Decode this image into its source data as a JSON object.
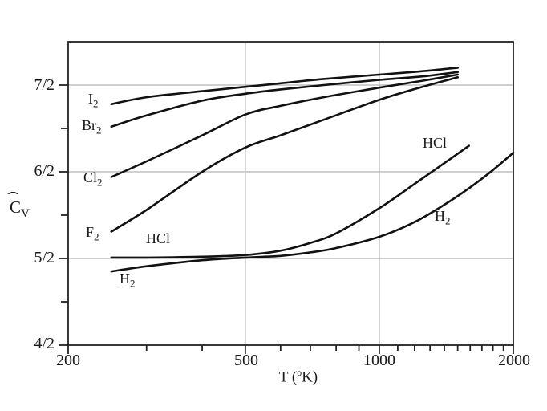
{
  "figure": {
    "y_axis_title": {
      "letter": "C",
      "hat": "ˆ",
      "sub": "V"
    },
    "x_axis_title": {
      "prefix": "T (",
      "sup": "o",
      "suffix": "K)"
    },
    "y_tick_labels": [
      "7/2",
      "6/2",
      "5/2",
      "4/2"
    ],
    "x_tick_labels": [
      "200",
      "500",
      "1000",
      "2000"
    ]
  },
  "curve_labels": {
    "i2": {
      "main": "I",
      "sub": "2"
    },
    "br2": {
      "main": "Br",
      "sub": "2"
    },
    "cl2": {
      "main": "Cl",
      "sub": "2"
    },
    "f2": {
      "main": "F",
      "sub": "2"
    },
    "hcl_left": {
      "main": "HCl",
      "sub": ""
    },
    "h2_left": {
      "main": "H",
      "sub": "2"
    },
    "hcl_right": {
      "main": "HCl",
      "sub": ""
    },
    "h2_right": {
      "main": "H",
      "sub": "2"
    }
  },
  "chart_data": {
    "type": "line",
    "title": "",
    "xlabel": "T (°K)",
    "ylabel": "Ĉv",
    "x_axis": {
      "scale": "log",
      "range": [
        200,
        2000
      ],
      "major_ticks": [
        200,
        500,
        1000,
        2000
      ],
      "minor_ticks": [
        300,
        400,
        600,
        700,
        800,
        900,
        1100,
        1200,
        1300,
        1400,
        1500,
        1600,
        1700,
        1800,
        1900
      ],
      "gridlines": [
        500,
        1000
      ]
    },
    "y_axis": {
      "range": [
        2.0,
        3.75
      ],
      "major_ticks": [
        2.0,
        2.5,
        3.0,
        3.5
      ],
      "major_tick_labels": [
        "4/2",
        "5/2",
        "6/2",
        "7/2"
      ],
      "minor_ticks": [
        2.25,
        2.75,
        3.25
      ],
      "gridlines": [
        2.5,
        3.0,
        3.5
      ]
    },
    "grid": true,
    "legend": "inline-labels",
    "series": [
      {
        "name": "I2",
        "points": [
          [
            250,
            3.39
          ],
          [
            300,
            3.43
          ],
          [
            400,
            3.465
          ],
          [
            500,
            3.49
          ],
          [
            600,
            3.51
          ],
          [
            750,
            3.535
          ],
          [
            1000,
            3.56
          ],
          [
            1250,
            3.58
          ],
          [
            1500,
            3.6
          ]
        ]
      },
      {
        "name": "Br2",
        "points": [
          [
            250,
            3.26
          ],
          [
            300,
            3.325
          ],
          [
            400,
            3.41
          ],
          [
            500,
            3.45
          ],
          [
            600,
            3.475
          ],
          [
            750,
            3.5
          ],
          [
            1000,
            3.53
          ],
          [
            1250,
            3.55
          ],
          [
            1500,
            3.575
          ]
        ]
      },
      {
        "name": "Cl2",
        "points": [
          [
            250,
            2.97
          ],
          [
            300,
            3.06
          ],
          [
            400,
            3.21
          ],
          [
            500,
            3.33
          ],
          [
            600,
            3.38
          ],
          [
            750,
            3.43
          ],
          [
            1000,
            3.485
          ],
          [
            1250,
            3.525
          ],
          [
            1500,
            3.56
          ]
        ]
      },
      {
        "name": "F2",
        "points": [
          [
            250,
            2.655
          ],
          [
            300,
            2.78
          ],
          [
            400,
            3.0
          ],
          [
            500,
            3.14
          ],
          [
            600,
            3.21
          ],
          [
            750,
            3.3
          ],
          [
            1000,
            3.415
          ],
          [
            1250,
            3.49
          ],
          [
            1500,
            3.545
          ]
        ]
      },
      {
        "name": "HCl",
        "points": [
          [
            250,
            2.505
          ],
          [
            300,
            2.505
          ],
          [
            400,
            2.51
          ],
          [
            500,
            2.52
          ],
          [
            600,
            2.545
          ],
          [
            700,
            2.59
          ],
          [
            800,
            2.645
          ],
          [
            1000,
            2.79
          ],
          [
            1200,
            2.93
          ],
          [
            1400,
            3.05
          ],
          [
            1590,
            3.15
          ]
        ]
      },
      {
        "name": "H2",
        "points": [
          [
            250,
            2.425
          ],
          [
            300,
            2.455
          ],
          [
            400,
            2.49
          ],
          [
            500,
            2.505
          ],
          [
            600,
            2.515
          ],
          [
            700,
            2.535
          ],
          [
            800,
            2.56
          ],
          [
            1000,
            2.625
          ],
          [
            1200,
            2.71
          ],
          [
            1400,
            2.81
          ],
          [
            1600,
            2.91
          ],
          [
            1800,
            3.01
          ],
          [
            2000,
            3.11
          ]
        ]
      }
    ]
  },
  "colors": {
    "curve": "#111111",
    "grid": "#b3b3b3",
    "axis": "#222222",
    "background": "#ffffff",
    "text": "#1a1a1a"
  }
}
